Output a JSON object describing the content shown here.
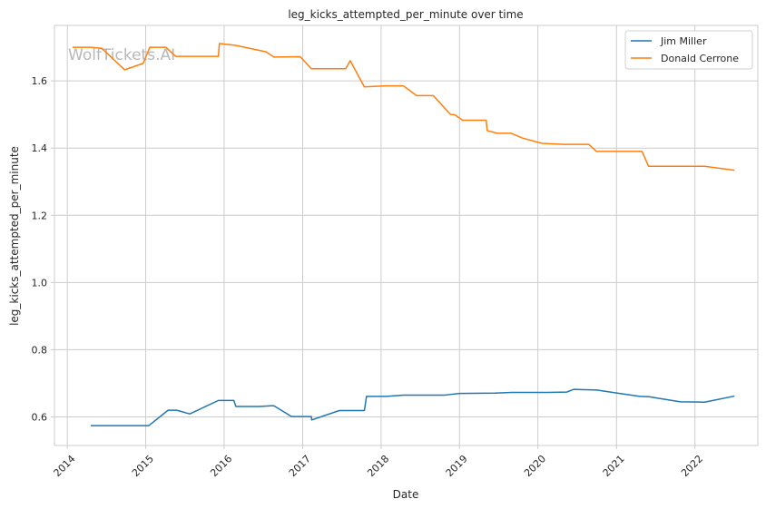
{
  "chart_data": {
    "type": "line",
    "title": "leg_kicks_attempted_per_minute over time",
    "xlabel": "Date",
    "ylabel": "leg_kicks_attempted_per_minute",
    "watermark": "WolfTickets.AI",
    "xlim": [
      "2013-11-02",
      "2022-10-21"
    ],
    "ylim": [
      0.515,
      1.765
    ],
    "x_ticks": [
      "2014",
      "2015",
      "2016",
      "2017",
      "2018",
      "2019",
      "2020",
      "2021",
      "2022"
    ],
    "y_ticks": [
      "0.6",
      "0.8",
      "1.0",
      "1.2",
      "1.4",
      "1.6"
    ],
    "grid": true,
    "legend_position": "top-right",
    "series": [
      {
        "name": "Jim Miller",
        "color": "#1f77b4",
        "points": [
          [
            "2014-04-20",
            0.574
          ],
          [
            "2014-08-10",
            0.574
          ],
          [
            "2015-01-15",
            0.574
          ],
          [
            "2015-04-15",
            0.62
          ],
          [
            "2015-05-25",
            0.62
          ],
          [
            "2015-07-25",
            0.609
          ],
          [
            "2015-12-05",
            0.649
          ],
          [
            "2016-02-15",
            0.649
          ],
          [
            "2016-02-25",
            0.631
          ],
          [
            "2016-06-15",
            0.631
          ],
          [
            "2016-08-05",
            0.633
          ],
          [
            "2016-08-20",
            0.633
          ],
          [
            "2016-11-10",
            0.601
          ],
          [
            "2017-01-10",
            0.601
          ],
          [
            "2017-02-10",
            0.601
          ],
          [
            "2017-02-12",
            0.591
          ],
          [
            "2017-06-20",
            0.619
          ],
          [
            "2017-10-15",
            0.619
          ],
          [
            "2017-10-25",
            0.661
          ],
          [
            "2018-01-25",
            0.661
          ],
          [
            "2018-04-15",
            0.665
          ],
          [
            "2018-10-25",
            0.665
          ],
          [
            "2019-01-01",
            0.67
          ],
          [
            "2019-06-15",
            0.671
          ],
          [
            "2019-09-01",
            0.673
          ],
          [
            "2020-02-15",
            0.673
          ],
          [
            "2020-05-15",
            0.674
          ],
          [
            "2020-06-15",
            0.682
          ],
          [
            "2020-10-01",
            0.68
          ],
          [
            "2021-01-15",
            0.67
          ],
          [
            "2021-04-20",
            0.661
          ],
          [
            "2021-06-01",
            0.66
          ],
          [
            "2021-10-25",
            0.645
          ],
          [
            "2022-02-15",
            0.644
          ],
          [
            "2022-07-04",
            0.662
          ]
        ]
      },
      {
        "name": "Donald Cerrone",
        "color": "#ff7f0e",
        "points": [
          [
            "2014-01-25",
            1.7
          ],
          [
            "2014-04-20",
            1.7
          ],
          [
            "2014-06-10",
            1.697
          ],
          [
            "2014-09-25",
            1.633
          ],
          [
            "2014-12-20",
            1.652
          ],
          [
            "2015-01-20",
            1.7
          ],
          [
            "2015-04-05",
            1.7
          ],
          [
            "2015-05-20",
            1.673
          ],
          [
            "2015-12-05",
            1.673
          ],
          [
            "2015-12-10",
            1.711
          ],
          [
            "2016-02-20",
            1.706
          ],
          [
            "2016-06-25",
            1.689
          ],
          [
            "2016-07-15",
            1.686
          ],
          [
            "2016-08-20",
            1.671
          ],
          [
            "2016-12-20",
            1.672
          ],
          [
            "2017-02-10",
            1.636
          ],
          [
            "2017-07-20",
            1.636
          ],
          [
            "2017-08-10",
            1.66
          ],
          [
            "2017-10-15",
            1.582
          ],
          [
            "2018-01-20",
            1.585
          ],
          [
            "2018-04-15",
            1.585
          ],
          [
            "2018-06-15",
            1.556
          ],
          [
            "2018-09-01",
            1.556
          ],
          [
            "2018-11-20",
            1.5
          ],
          [
            "2018-12-10",
            1.499
          ],
          [
            "2019-01-15",
            1.483
          ],
          [
            "2019-05-05",
            1.483
          ],
          [
            "2019-05-10",
            1.452
          ],
          [
            "2019-06-25",
            1.444
          ],
          [
            "2019-08-30",
            1.444
          ],
          [
            "2019-10-20",
            1.43
          ],
          [
            "2020-01-20",
            1.414
          ],
          [
            "2020-05-01",
            1.411
          ],
          [
            "2020-08-25",
            1.411
          ],
          [
            "2020-09-30",
            1.39
          ],
          [
            "2021-04-30",
            1.39
          ],
          [
            "2021-05-30",
            1.346
          ],
          [
            "2022-02-15",
            1.346
          ],
          [
            "2022-07-04",
            1.334
          ]
        ]
      }
    ]
  }
}
